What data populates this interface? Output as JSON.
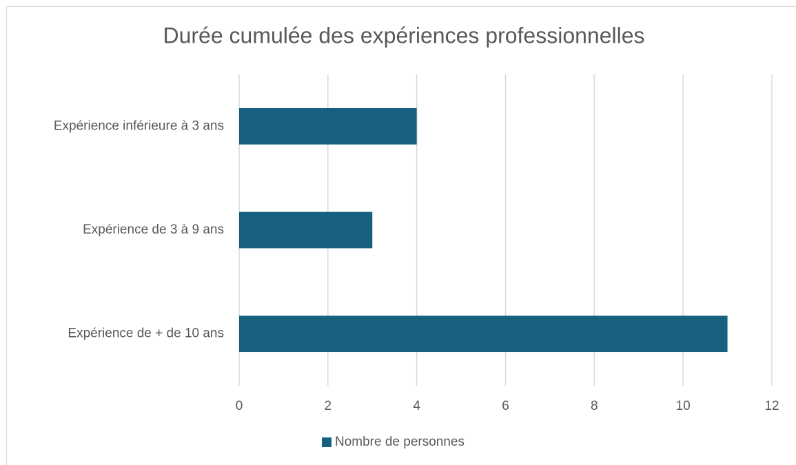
{
  "chart_data": {
    "type": "bar",
    "orientation": "horizontal",
    "title": "Durée cumulée des expériences professionnelles",
    "categories": [
      "Expérience inférieure à 3 ans",
      "Expérience de 3 à 9 ans",
      "Expérience de + de 10 ans"
    ],
    "series": [
      {
        "name": "Nombre de personnes",
        "color": "#17607f",
        "values": [
          4,
          3,
          11
        ]
      }
    ],
    "xlim": [
      0,
      12
    ],
    "xticks": [
      0,
      2,
      4,
      6,
      8,
      10,
      12
    ],
    "grid": true,
    "legend": "bottom"
  }
}
